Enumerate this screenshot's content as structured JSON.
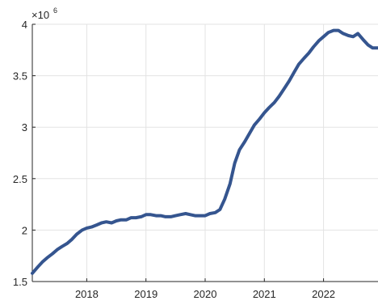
{
  "chart_data": {
    "type": "line",
    "title": "",
    "xlabel": "",
    "ylabel": "",
    "y_exponent_label": "×10",
    "y_exponent_power": "6",
    "xlim": [
      2017.08,
      2022.92
    ],
    "ylim": [
      1.5,
      4
    ],
    "grid": true,
    "x_ticks": [
      2018,
      2019,
      2020,
      2021,
      2022
    ],
    "x_tick_labels": [
      "2018",
      "2019",
      "2020",
      "2021",
      "2022"
    ],
    "y_ticks": [
      1.5,
      2,
      2.5,
      3,
      3.5,
      4
    ],
    "y_tick_labels": [
      "1.5",
      "2",
      "2.5",
      "3",
      "3.5",
      "4"
    ],
    "series": [
      {
        "color": "#35558f",
        "x": [
          2017.08,
          2017.17,
          2017.25,
          2017.33,
          2017.42,
          2017.5,
          2017.58,
          2017.67,
          2017.75,
          2017.83,
          2017.92,
          2018.0,
          2018.08,
          2018.17,
          2018.25,
          2018.33,
          2018.42,
          2018.5,
          2018.58,
          2018.67,
          2018.75,
          2018.83,
          2018.92,
          2019.0,
          2019.08,
          2019.17,
          2019.25,
          2019.33,
          2019.42,
          2019.5,
          2019.58,
          2019.67,
          2019.75,
          2019.83,
          2019.92,
          2020.0,
          2020.08,
          2020.17,
          2020.25,
          2020.33,
          2020.42,
          2020.5,
          2020.58,
          2020.67,
          2020.75,
          2020.83,
          2020.92,
          2021.0,
          2021.08,
          2021.17,
          2021.25,
          2021.33,
          2021.42,
          2021.5,
          2021.58,
          2021.67,
          2021.75,
          2021.83,
          2021.92,
          2022.0,
          2022.08,
          2022.17,
          2022.25,
          2022.33,
          2022.42,
          2022.5,
          2022.58,
          2022.67,
          2022.75,
          2022.83,
          2022.92
        ],
        "y": [
          1.58,
          1.64,
          1.69,
          1.73,
          1.77,
          1.81,
          1.84,
          1.87,
          1.91,
          1.96,
          2.0,
          2.02,
          2.03,
          2.05,
          2.07,
          2.08,
          2.07,
          2.09,
          2.1,
          2.1,
          2.12,
          2.12,
          2.13,
          2.15,
          2.15,
          2.14,
          2.14,
          2.13,
          2.13,
          2.14,
          2.15,
          2.16,
          2.15,
          2.14,
          2.14,
          2.14,
          2.16,
          2.17,
          2.2,
          2.3,
          2.45,
          2.65,
          2.78,
          2.86,
          2.94,
          3.02,
          3.08,
          3.14,
          3.19,
          3.24,
          3.3,
          3.37,
          3.45,
          3.53,
          3.61,
          3.67,
          3.72,
          3.78,
          3.84,
          3.88,
          3.92,
          3.94,
          3.94,
          3.91,
          3.89,
          3.88,
          3.91,
          3.85,
          3.8,
          3.77,
          3.77
        ]
      }
    ]
  }
}
